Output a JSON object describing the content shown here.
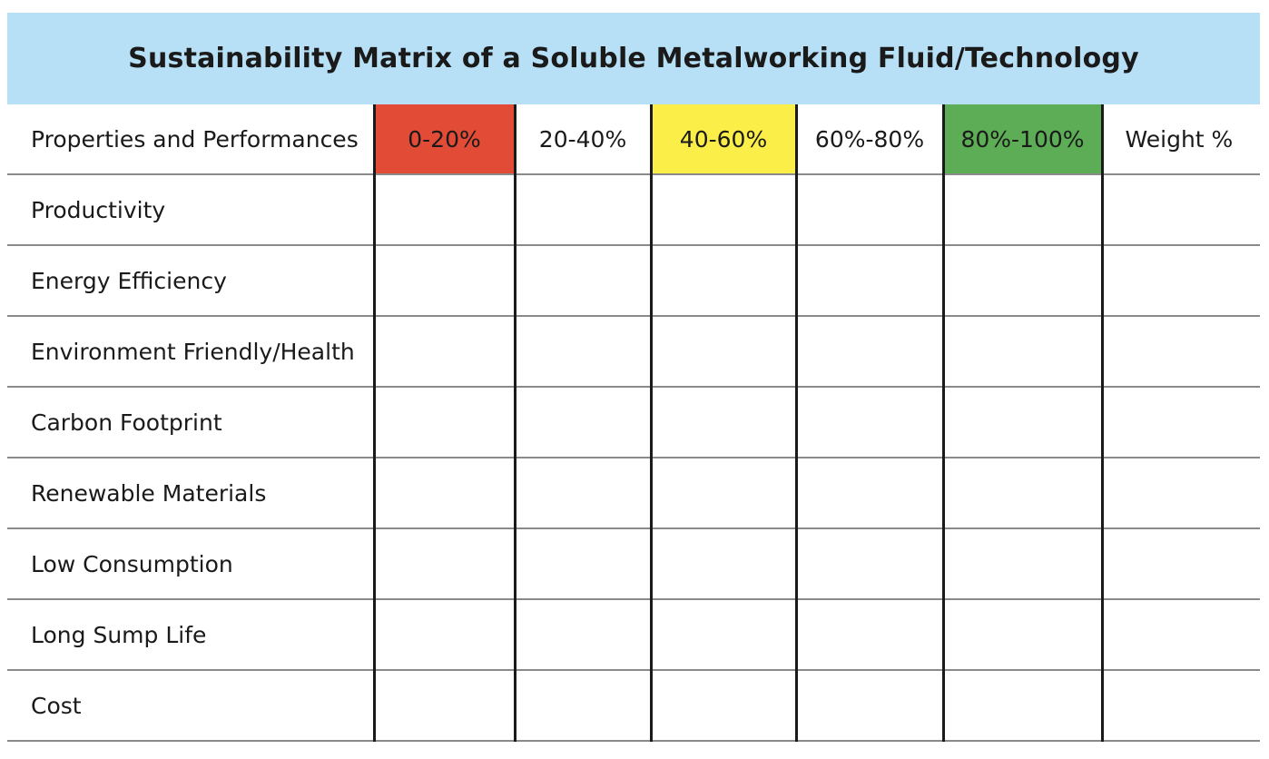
{
  "title": "Sustainability Matrix of a Soluble Metalworking Fluid/Technology",
  "header": {
    "first_column": "Properties and Performances",
    "bands": [
      {
        "label": "0-20%",
        "color": "#e24b36"
      },
      {
        "label": "20-40%",
        "color": "#ffffff"
      },
      {
        "label": "40-60%",
        "color": "#fbee48"
      },
      {
        "label": "60%-80%",
        "color": "#ffffff"
      },
      {
        "label": "80%-100%",
        "color": "#5cad55"
      }
    ],
    "weight_column": "Weight %"
  },
  "rows": [
    {
      "label": "Productivity"
    },
    {
      "label": "Energy Efficiency"
    },
    {
      "label": "Environment Friendly/Health"
    },
    {
      "label": "Carbon Footprint"
    },
    {
      "label": "Renewable Materials"
    },
    {
      "label": "Low Consumption"
    },
    {
      "label": "Long Sump Life"
    },
    {
      "label": "Cost"
    }
  ],
  "colors": {
    "title_background": "#b7e0f6",
    "row_divider": "#8a8a8a",
    "column_divider": "#1a1a1a"
  }
}
